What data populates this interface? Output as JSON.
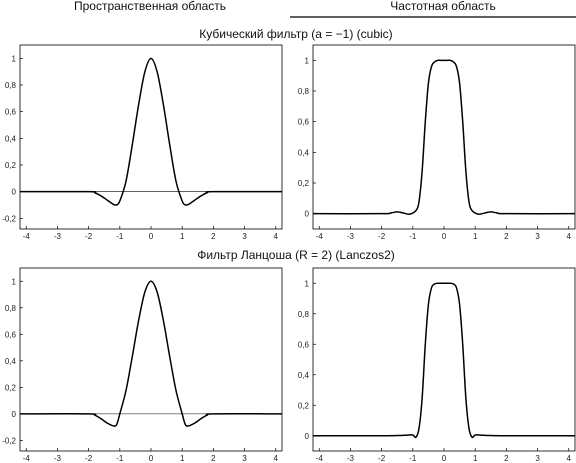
{
  "header": {
    "spatial": "Пространственная область",
    "frequency": "Частотная область"
  },
  "sections": [
    {
      "title": "Кубический фильтр (a = −1) (cubic)"
    },
    {
      "title": "Фильтр Ланцоша (R = 2) (Lanczos2)"
    }
  ],
  "chart_data": [
    {
      "type": "line",
      "section": 0,
      "domain": "spatial",
      "xlim": [
        -4.2,
        4.2
      ],
      "ylim": [
        -0.28,
        1.1
      ],
      "xticks": [
        -4,
        -3,
        -2,
        -1,
        0,
        1,
        2,
        3,
        4
      ],
      "xtick_labels": [
        "-4",
        "-3",
        "-2",
        "-1",
        "0",
        "1",
        "2",
        "3",
        "4"
      ],
      "yticks": [
        1,
        0.8,
        0.6,
        0.4,
        0.2,
        0,
        -0.2
      ],
      "ytick_labels": [
        "1",
        "0,8",
        "0,6",
        "0,4",
        "0,2",
        "0",
        "-0,2"
      ],
      "baseline_y": 0,
      "series": [
        {
          "x": [
            -4.2,
            -2,
            -1.8,
            -1.6,
            -1.4,
            -1.2,
            -1.1,
            -1,
            -0.8,
            -0.6,
            -0.4,
            -0.2,
            0,
            0.2,
            0.4,
            0.6,
            0.8,
            1,
            1.1,
            1.2,
            1.4,
            1.6,
            1.8,
            2,
            4.2
          ],
          "values": [
            0,
            0,
            -0.008,
            -0.032,
            -0.064,
            -0.096,
            -0.099,
            -0.07,
            0.08,
            0.352,
            0.648,
            0.896,
            1,
            0.896,
            0.648,
            0.352,
            0.08,
            -0.07,
            -0.099,
            -0.096,
            -0.064,
            -0.032,
            -0.008,
            0,
            0
          ]
        }
      ]
    },
    {
      "type": "line",
      "section": 0,
      "domain": "frequency",
      "xlim": [
        -4.2,
        4.2
      ],
      "ylim": [
        -0.1,
        1.1
      ],
      "xticks": [
        -4,
        -3,
        -2,
        -1,
        0,
        1,
        2,
        3,
        4
      ],
      "xtick_labels": [
        "-4",
        "-3",
        "-2",
        "-1",
        "0",
        "1",
        "2",
        "3",
        "4"
      ],
      "yticks": [
        1,
        0.8,
        0.6,
        0.4,
        0.2,
        0
      ],
      "ytick_labels": [
        "1",
        "0,8",
        "0,6",
        "0,4",
        "0,2",
        "0"
      ],
      "series": [
        {
          "x": [
            -4.2,
            -2,
            -1.7,
            -1.5,
            -1.3,
            -1.1,
            -0.9,
            -0.8,
            -0.7,
            -0.6,
            -0.5,
            -0.4,
            -0.3,
            -0.2,
            -0.1,
            0,
            0.1,
            0.2,
            0.3,
            0.4,
            0.5,
            0.6,
            0.7,
            0.8,
            0.9,
            1.1,
            1.3,
            1.5,
            1.7,
            2,
            4.2
          ],
          "values": [
            0,
            0,
            0.005,
            0.012,
            0.004,
            -0.003,
            0.02,
            0.08,
            0.28,
            0.6,
            0.85,
            0.96,
            0.99,
            1,
            1,
            1,
            1,
            1,
            0.99,
            0.96,
            0.85,
            0.6,
            0.28,
            0.08,
            0.02,
            -0.003,
            0.004,
            0.012,
            0.005,
            0,
            0
          ]
        }
      ]
    },
    {
      "type": "line",
      "section": 1,
      "domain": "spatial",
      "xlim": [
        -4.2,
        4.2
      ],
      "ylim": [
        -0.28,
        1.1
      ],
      "xticks": [
        -4,
        -3,
        -2,
        -1,
        0,
        1,
        2,
        3,
        4
      ],
      "xtick_labels": [
        "-4",
        "-3",
        "-2",
        "-1",
        "0",
        "1",
        "2",
        "3",
        "4"
      ],
      "yticks": [
        1,
        0.8,
        0.6,
        0.4,
        0.2,
        0,
        -0.2
      ],
      "ytick_labels": [
        "1",
        "0,8",
        "0,6",
        "0,4",
        "0,2",
        "0",
        "-0,2"
      ],
      "baseline_y": 0,
      "series": [
        {
          "x": [
            -4.2,
            -2,
            -1.8,
            -1.6,
            -1.4,
            -1.2,
            -1.1,
            -1,
            -0.8,
            -0.6,
            -0.4,
            -0.2,
            0,
            0.2,
            0.4,
            0.6,
            0.8,
            1,
            1.1,
            1.2,
            1.4,
            1.6,
            1.8,
            2,
            4.2
          ],
          "values": [
            0,
            0,
            -0.01,
            -0.037,
            -0.07,
            -0.091,
            -0.08,
            0,
            0.178,
            0.432,
            0.7,
            0.916,
            1,
            0.916,
            0.7,
            0.432,
            0.178,
            0,
            -0.08,
            -0.091,
            -0.07,
            -0.037,
            -0.01,
            0,
            0
          ]
        }
      ]
    },
    {
      "type": "line",
      "section": 1,
      "domain": "frequency",
      "xlim": [
        -4.2,
        4.2
      ],
      "ylim": [
        -0.1,
        1.1
      ],
      "xticks": [
        -4,
        -3,
        -2,
        -1,
        0,
        1,
        2,
        3,
        4
      ],
      "xtick_labels": [
        "-4",
        "-3",
        "-2",
        "-1",
        "0",
        "1",
        "2",
        "3",
        "4"
      ],
      "yticks": [
        1,
        0.8,
        0.6,
        0.4,
        0.2,
        0
      ],
      "ytick_labels": [
        "1",
        "0,8",
        "0,6",
        "0,4",
        "0,2",
        "0"
      ],
      "series": [
        {
          "x": [
            -4.2,
            -2,
            -1.4,
            -1.2,
            -1.0,
            -0.9,
            -0.8,
            -0.7,
            -0.6,
            -0.5,
            -0.4,
            -0.3,
            -0.2,
            -0.1,
            0,
            0.1,
            0.2,
            0.3,
            0.4,
            0.5,
            0.6,
            0.7,
            0.8,
            0.9,
            1.0,
            1.2,
            1.4,
            2,
            4.2
          ],
          "values": [
            0,
            0,
            0.002,
            0.004,
            0.005,
            -0.01,
            0.05,
            0.25,
            0.6,
            0.86,
            0.97,
            0.995,
            1,
            1,
            1,
            1,
            1,
            0.995,
            0.97,
            0.86,
            0.6,
            0.25,
            0.05,
            -0.01,
            0.005,
            0.004,
            0.002,
            0,
            0
          ]
        }
      ]
    }
  ]
}
